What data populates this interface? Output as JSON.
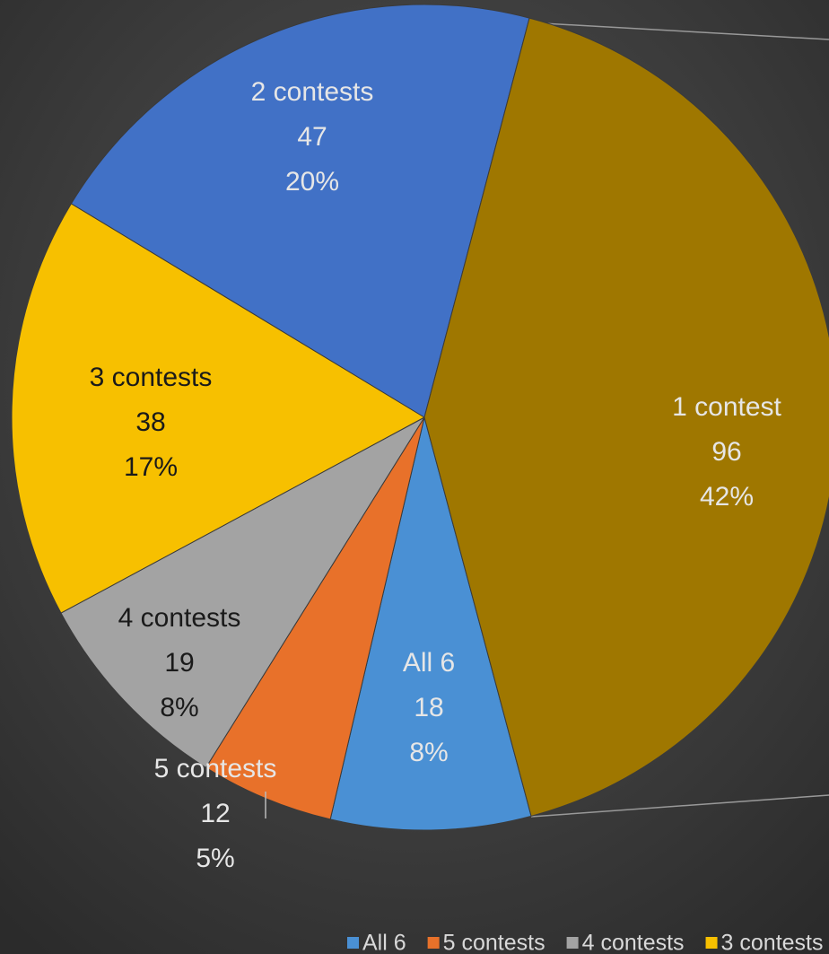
{
  "chart_data": {
    "type": "pie",
    "categories": [
      "All 6",
      "5 contests",
      "4 contests",
      "3 contests",
      "2 contests",
      "1 contest"
    ],
    "values": [
      18,
      12,
      19,
      38,
      47,
      96
    ],
    "percent_labels": [
      "8%",
      "5%",
      "8%",
      "17%",
      "20%",
      "42%"
    ],
    "colors": [
      "#4a90d4",
      "#e8712a",
      "#a3a3a3",
      "#f7c000",
      "#4171c6",
      "#9f7700"
    ],
    "legend": "bottom"
  }
}
